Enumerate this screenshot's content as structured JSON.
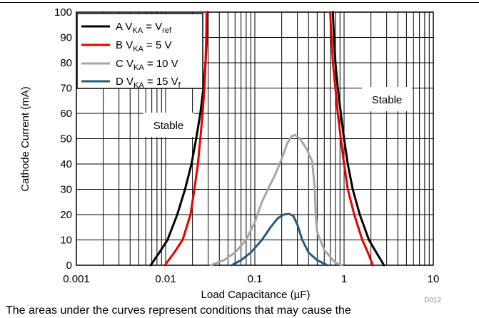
{
  "chart_data": {
    "type": "line",
    "xlabel": "Load Capacitance (µF)",
    "ylabel": "Cathode Current (mA)",
    "x_scale": "log",
    "xlim": [
      0.001,
      10
    ],
    "ylim": [
      0,
      100
    ],
    "x_ticks": [
      "0.001",
      "0.01",
      "0.1",
      "1",
      "10"
    ],
    "y_ticks": [
      "0",
      "10",
      "20",
      "30",
      "40",
      "50",
      "60",
      "70",
      "80",
      "90",
      "100"
    ],
    "grid": true,
    "legend_position": "top-left",
    "legend": [
      {
        "letter": "A",
        "v": "V",
        "sub": "KA",
        "eq": " = V",
        "sub2": "ref",
        "tail": ""
      },
      {
        "letter": "B",
        "v": "V",
        "sub": "KA",
        "eq": " = 5 V",
        "sub2": "",
        "tail": ""
      },
      {
        "letter": "C",
        "v": "V",
        "sub": "KA",
        "eq": " = 10 V",
        "sub2": "",
        "tail": ""
      },
      {
        "letter": "D",
        "v": "V",
        "sub": "KA",
        "eq": " = 15 V",
        "sub2": "f",
        "tail": ""
      }
    ],
    "annotations": [
      "Stable",
      "Stable"
    ],
    "id_label": "D012",
    "series": [
      {
        "name": "A",
        "color": "#000000",
        "segments": [
          [
            [
              0.0068,
              0
            ],
            [
              0.0085,
              5
            ],
            [
              0.0105,
              10
            ],
            [
              0.0135,
              20
            ],
            [
              0.0165,
              30
            ],
            [
              0.0195,
              40
            ],
            [
              0.022,
              50
            ],
            [
              0.0245,
              60
            ],
            [
              0.0265,
              70
            ],
            [
              0.028,
              80
            ],
            [
              0.029,
              90
            ],
            [
              0.0295,
              100
            ]
          ],
          [
            [
              0.75,
              100
            ],
            [
              0.77,
              90
            ],
            [
              0.8,
              80
            ],
            [
              0.85,
              70
            ],
            [
              0.92,
              60
            ],
            [
              1.0,
              50
            ],
            [
              1.1,
              40
            ],
            [
              1.25,
              30
            ],
            [
              1.5,
              20
            ],
            [
              1.9,
              10
            ],
            [
              2.3,
              5
            ],
            [
              2.8,
              0
            ]
          ]
        ]
      },
      {
        "name": "B",
        "color": "#e60000",
        "segments": [
          [
            [
              0.0098,
              0
            ],
            [
              0.0125,
              5
            ],
            [
              0.0155,
              10
            ],
            [
              0.019,
              20
            ],
            [
              0.021,
              30
            ],
            [
              0.023,
              40
            ],
            [
              0.0245,
              50
            ],
            [
              0.026,
              60
            ],
            [
              0.0272,
              70
            ],
            [
              0.028,
              80
            ],
            [
              0.0285,
              90
            ],
            [
              0.0288,
              100
            ]
          ],
          [
            [
              0.7,
              100
            ],
            [
              0.72,
              90
            ],
            [
              0.75,
              80
            ],
            [
              0.8,
              70
            ],
            [
              0.85,
              60
            ],
            [
              0.92,
              50
            ],
            [
              1.0,
              40
            ],
            [
              1.1,
              30
            ],
            [
              1.3,
              20
            ],
            [
              1.6,
              10
            ],
            [
              1.85,
              5
            ],
            [
              2.1,
              0
            ]
          ]
        ]
      },
      {
        "name": "C",
        "color": "#a6a6a6",
        "segments": [
          [
            [
              0.032,
              0
            ],
            [
              0.045,
              2
            ],
            [
              0.06,
              5
            ],
            [
              0.08,
              10
            ],
            [
              0.1,
              17
            ],
            [
              0.12,
              25
            ],
            [
              0.14,
              30
            ],
            [
              0.17,
              36
            ],
            [
              0.2,
              42
            ],
            [
              0.23,
              48
            ],
            [
              0.26,
              51
            ],
            [
              0.28,
              51.5
            ],
            [
              0.32,
              50
            ],
            [
              0.38,
              46
            ],
            [
              0.44,
              41
            ],
            [
              0.47,
              30
            ],
            [
              0.48,
              20
            ],
            [
              0.5,
              13
            ],
            [
              0.6,
              6
            ],
            [
              0.8,
              1
            ],
            [
              0.95,
              0
            ]
          ]
        ]
      },
      {
        "name": "D",
        "color": "#2a5a7a",
        "segments": [
          [
            [
              0.055,
              0
            ],
            [
              0.07,
              2
            ],
            [
              0.09,
              5
            ],
            [
              0.12,
              10
            ],
            [
              0.15,
              15
            ],
            [
              0.18,
              18.5
            ],
            [
              0.21,
              20
            ],
            [
              0.24,
              20.3
            ],
            [
              0.27,
              19.5
            ],
            [
              0.3,
              16
            ],
            [
              0.34,
              10
            ],
            [
              0.4,
              5
            ],
            [
              0.5,
              2
            ],
            [
              0.65,
              0
            ]
          ]
        ]
      }
    ]
  },
  "caption": "The areas under the curves represent conditions that may cause the"
}
